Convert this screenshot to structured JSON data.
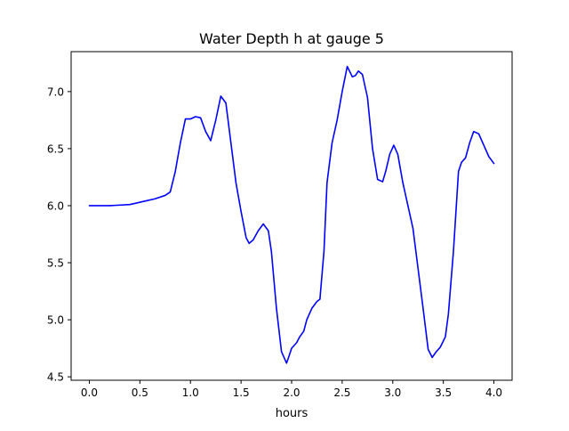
{
  "chart_data": {
    "type": "line",
    "title": "Water Depth h at gauge 5",
    "xlabel": "hours",
    "ylabel": "",
    "xlim": [
      -0.18,
      4.18
    ],
    "ylim": [
      4.47,
      7.35
    ],
    "xticks": [
      0.0,
      0.5,
      1.0,
      1.5,
      2.0,
      2.5,
      3.0,
      3.5,
      4.0
    ],
    "xtick_labels": [
      "0.0",
      "0.5",
      "1.0",
      "1.5",
      "2.0",
      "2.5",
      "3.0",
      "3.5",
      "4.0"
    ],
    "yticks": [
      4.5,
      5.0,
      5.5,
      6.0,
      6.5,
      7.0
    ],
    "ytick_labels": [
      "4.5",
      "5.0",
      "5.5",
      "6.0",
      "6.5",
      "7.0"
    ],
    "grid": false,
    "colors": {
      "line": "#0000ff",
      "axes": "#000000",
      "background": "#ffffff"
    },
    "series": [
      {
        "x": [
          0.0,
          0.2,
          0.4,
          0.45,
          0.55,
          0.65,
          0.75,
          0.8,
          0.85,
          0.9,
          0.95,
          1.0,
          1.05,
          1.1,
          1.15,
          1.2,
          1.25,
          1.3,
          1.35,
          1.4,
          1.45,
          1.5,
          1.55,
          1.58,
          1.62,
          1.67,
          1.72,
          1.77,
          1.8,
          1.85,
          1.9,
          1.95,
          1.97,
          2.0,
          2.05,
          2.08,
          2.12,
          2.15,
          2.2,
          2.25,
          2.28,
          2.32,
          2.35,
          2.4,
          2.45,
          2.5,
          2.55,
          2.6,
          2.63,
          2.66,
          2.7,
          2.75,
          2.8,
          2.85,
          2.9,
          2.93,
          2.97,
          3.01,
          3.05,
          3.1,
          3.15,
          3.2,
          3.25,
          3.3,
          3.35,
          3.39,
          3.43,
          3.47,
          3.52,
          3.55,
          3.6,
          3.65,
          3.68,
          3.72,
          3.76,
          3.8,
          3.85,
          3.9,
          3.95,
          4.0
        ],
        "y": [
          6.0,
          6.0,
          6.01,
          6.02,
          6.04,
          6.06,
          6.09,
          6.12,
          6.3,
          6.55,
          6.76,
          6.76,
          6.78,
          6.77,
          6.65,
          6.57,
          6.75,
          6.96,
          6.9,
          6.55,
          6.2,
          5.95,
          5.72,
          5.67,
          5.7,
          5.78,
          5.84,
          5.78,
          5.6,
          5.1,
          4.72,
          4.62,
          4.67,
          4.75,
          4.8,
          4.85,
          4.9,
          5.0,
          5.1,
          5.16,
          5.18,
          5.6,
          6.2,
          6.55,
          6.75,
          7.0,
          7.22,
          7.13,
          7.14,
          7.18,
          7.15,
          6.95,
          6.5,
          6.23,
          6.21,
          6.3,
          6.45,
          6.53,
          6.45,
          6.2,
          6.0,
          5.8,
          5.45,
          5.1,
          4.74,
          4.67,
          4.72,
          4.76,
          4.85,
          5.05,
          5.6,
          6.3,
          6.38,
          6.42,
          6.55,
          6.65,
          6.63,
          6.53,
          6.43,
          6.37
        ]
      }
    ]
  }
}
